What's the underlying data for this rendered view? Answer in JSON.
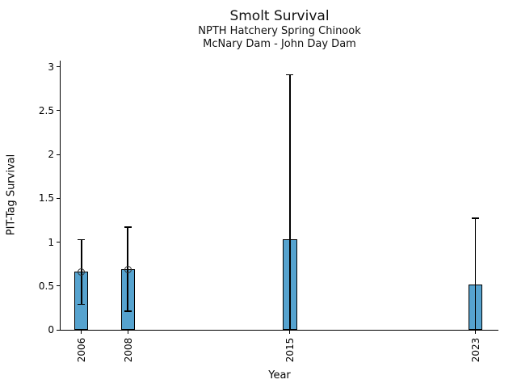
{
  "chart_data": {
    "type": "bar",
    "title": "Smolt Survival",
    "subtitle_line1": "NPTH Hatchery Spring Chinook",
    "subtitle_line2": "McNary Dam - John Day Dam",
    "xlabel": "Year",
    "ylabel": "PIT-Tag Survival",
    "categories": [
      2006,
      2008,
      2015,
      2023
    ],
    "xtick_labels": [
      "2006",
      "2008",
      "2015",
      "2023"
    ],
    "values": [
      0.66,
      0.69,
      1.03,
      0.52
    ],
    "error_low": [
      0.29,
      0.21,
      0.0,
      0.0
    ],
    "error_high": [
      1.03,
      1.17,
      2.91,
      1.27
    ],
    "point_markers": [
      true,
      true,
      false,
      false
    ],
    "yticks": [
      0,
      0.5,
      1,
      1.5,
      2,
      2.5,
      3
    ],
    "ytick_labels": [
      "0",
      "0.5",
      "1",
      "1.5",
      "2",
      "2.5",
      "3"
    ],
    "ylim": [
      0,
      3.07
    ],
    "xlim": [
      2005.1,
      2024.0
    ],
    "bar_width_years": 0.6,
    "grid": false,
    "legend": false,
    "colors": {
      "bar_fill": "#56A3CF",
      "bar_edge": "#000000",
      "error_bar": "#000000",
      "marker_edge": "#2F2F2F",
      "background": "#FFFFFF",
      "text": "#000000"
    }
  }
}
